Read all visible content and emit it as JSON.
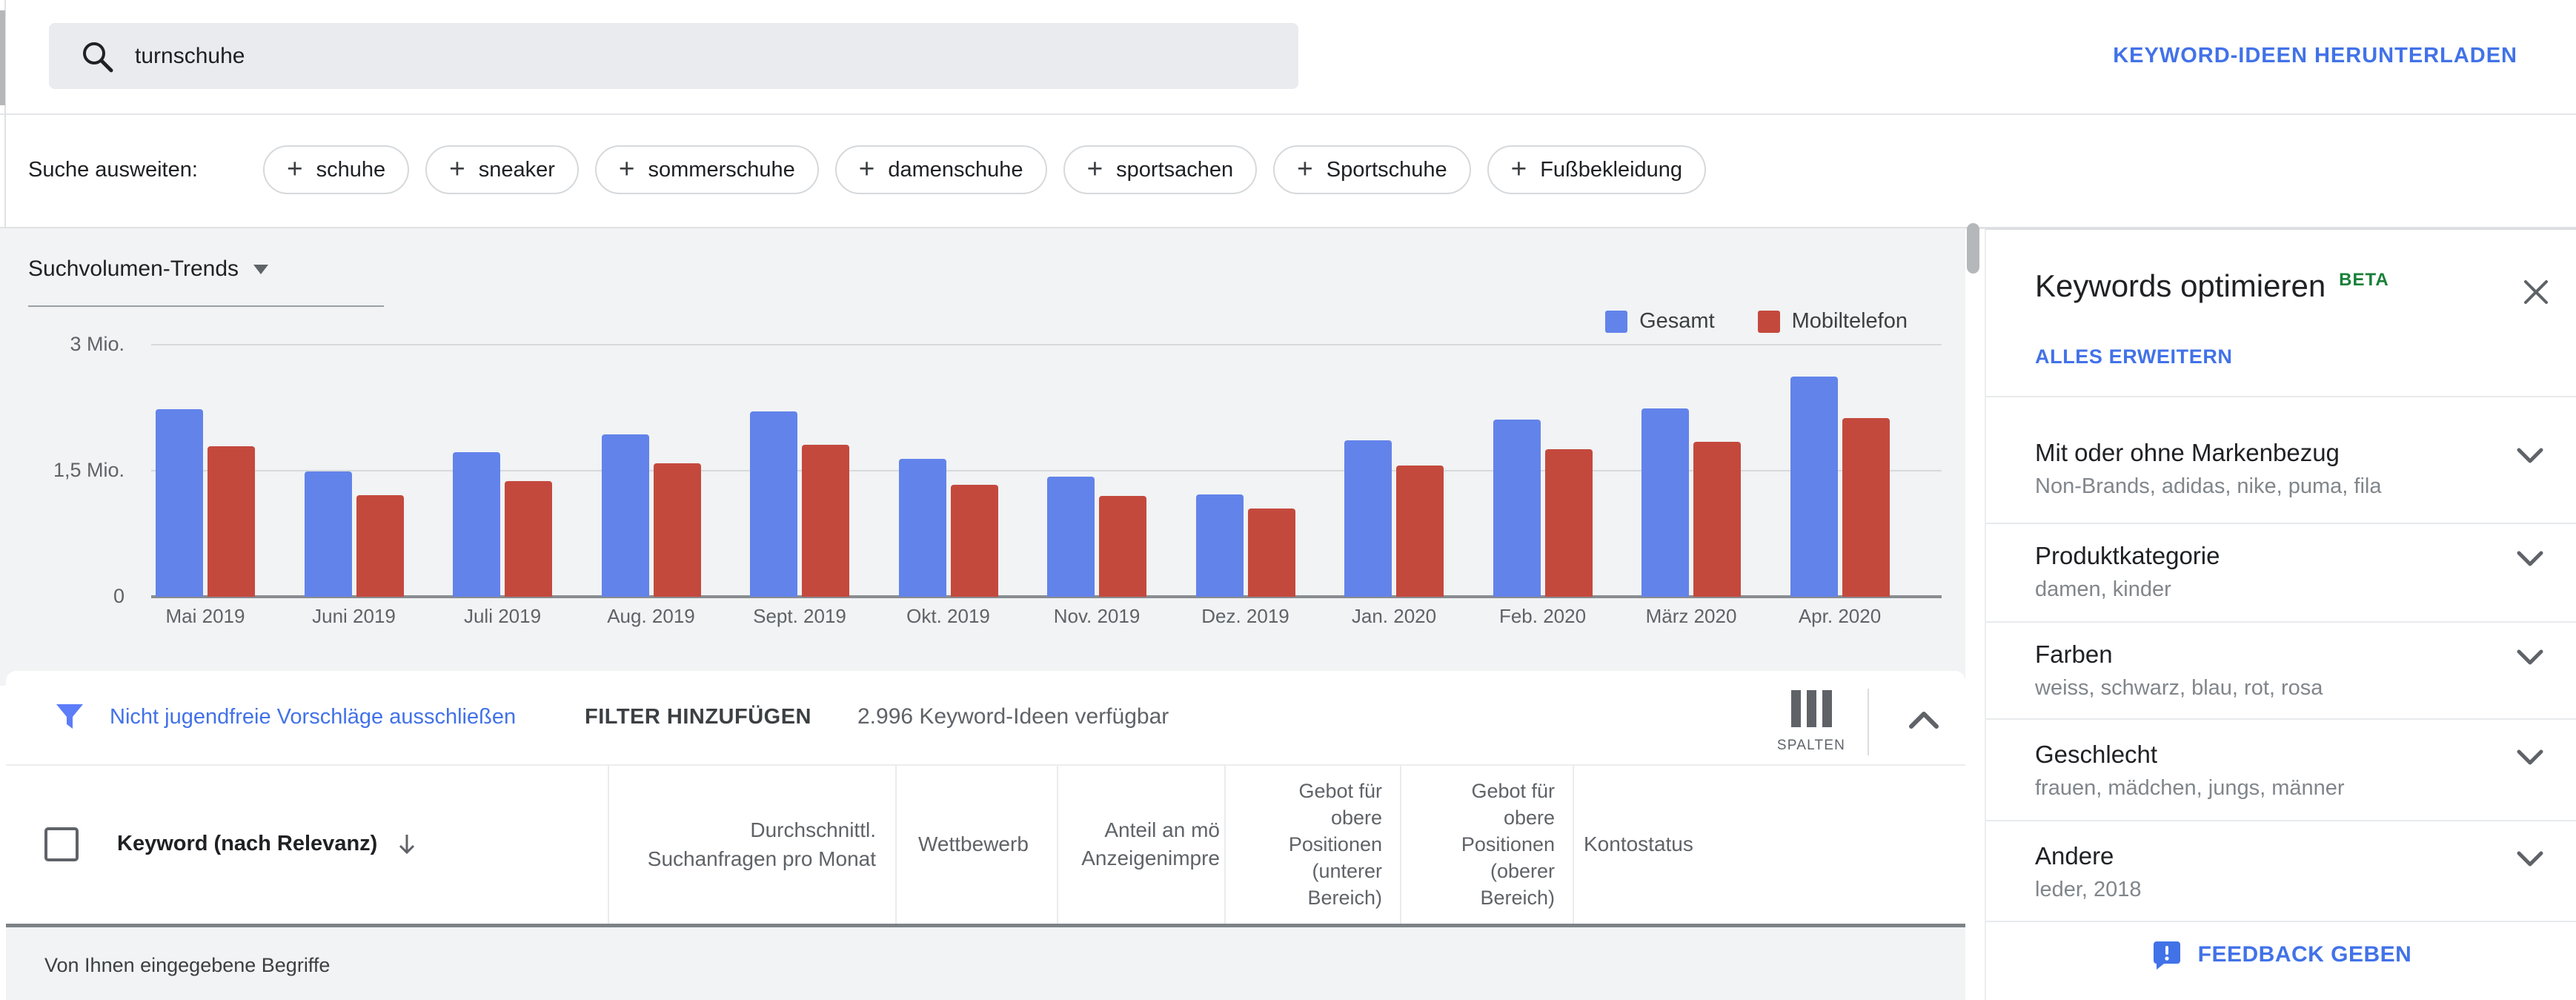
{
  "colors": {
    "link_blue": "#4272e8",
    "filter_blue": "#5c7cfa",
    "beta_green": "#188038",
    "bar_blue": "#6283ea",
    "bar_red": "#c4493d",
    "chart_bg": "#f1f3f4"
  },
  "header": {
    "search_value": "turnschuhe",
    "download_label": "KEYWORD-IDEEN HERUNTERLADEN"
  },
  "expand_search": {
    "label": "Suche ausweiten:",
    "chips": [
      "schuhe",
      "sneaker",
      "sommerschuhe",
      "damenschuhe",
      "sportsachen",
      "Sportschuhe",
      "Fußbekleidung"
    ]
  },
  "chart_data": {
    "type": "bar",
    "title": "Suchvolumen-Trends",
    "categories": [
      "Mai 2019",
      "Juni 2019",
      "Juli 2019",
      "Aug. 2019",
      "Sept. 2019",
      "Okt. 2019",
      "Nov. 2019",
      "Dez. 2019",
      "Jan. 2020",
      "Feb. 2020",
      "März 2020",
      "Apr. 2020"
    ],
    "series": [
      {
        "name": "Gesamt",
        "color": "#6283ea",
        "values": [
          2.23,
          1.49,
          1.72,
          1.93,
          2.21,
          1.64,
          1.43,
          1.22,
          1.86,
          2.11,
          2.24,
          2.62
        ]
      },
      {
        "name": "Mobiltelefon",
        "color": "#c4493d",
        "values": [
          1.79,
          1.21,
          1.38,
          1.59,
          1.81,
          1.33,
          1.2,
          1.05,
          1.56,
          1.76,
          1.84,
          2.13
        ]
      }
    ],
    "value_unit": "Mio.",
    "ylim": [
      0,
      3
    ],
    "y_ticks": [
      {
        "value": 3,
        "label": "3 Mio."
      },
      {
        "value": 1.5,
        "label": "1,5 Mio."
      },
      {
        "value": 0,
        "label": "0"
      }
    ],
    "grid": true,
    "legend_position": "top-right"
  },
  "filter_bar": {
    "exclude_label": "Nicht jugendfreie Vorschläge ausschließen",
    "add_filter_label": "FILTER HINZUFÜGEN",
    "count_label": "2.996 Keyword-Ideen verfügbar",
    "columns_label": "SPALTEN"
  },
  "table": {
    "columns": [
      {
        "label": "Keyword (nach Relevanz)"
      },
      {
        "label": "Durchschnittl.\nSuchanfragen pro Monat"
      },
      {
        "label": "Wettbewerb"
      },
      {
        "label": "Anteil an mö\nAnzeigenimpre"
      },
      {
        "label": "Gebot für\nobere\nPositionen\n(unterer\nBereich)"
      },
      {
        "label": "Gebot für\nobere\nPositionen\n(oberer\nBereich)"
      },
      {
        "label": "Kontostatus"
      }
    ],
    "section_row_label": "Von Ihnen eingegebene Begriffe"
  },
  "sidebar": {
    "title": "Keywords optimieren",
    "beta_label": "BETA",
    "expand_all_label": "ALLES ERWEITERN",
    "sections": [
      {
        "title": "Mit oder ohne Markenbezug",
        "subtitle": "Non-Brands, adidas, nike, puma, fila"
      },
      {
        "title": "Produktkategorie",
        "subtitle": "damen, kinder"
      },
      {
        "title": "Farben",
        "subtitle": "weiss, schwarz, blau, rot, rosa"
      },
      {
        "title": "Geschlecht",
        "subtitle": "frauen, mädchen, jungs, männer"
      },
      {
        "title": "Andere",
        "subtitle": "leder, 2018"
      }
    ],
    "feedback_label": "FEEDBACK GEBEN"
  }
}
